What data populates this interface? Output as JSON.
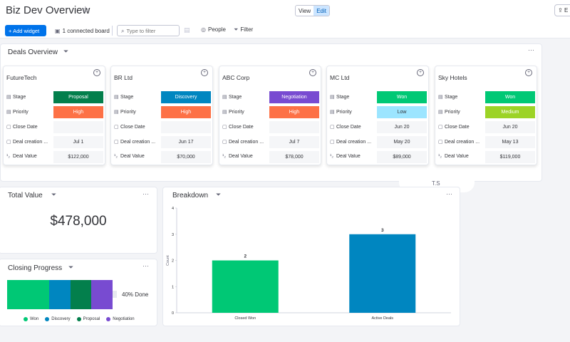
{
  "header": {
    "title": "Biz Dev Overview",
    "view_label": "View",
    "edit_label": "Edit",
    "export_label": "E"
  },
  "toolbar": {
    "add_widget": "Add widget",
    "connected_board": "1 connected board",
    "search_placeholder": "Type to filter",
    "people": "People",
    "filter": "Filter"
  },
  "deals_overview": {
    "title": "Deals Overview",
    "row_labels": [
      "Stage",
      "Priority",
      "Close Date",
      "Deal creation ...",
      "Deal Value"
    ],
    "cards": [
      {
        "name": "FutureTech",
        "stage": "Proposal",
        "stage_color": "#037f4c",
        "priority": "High",
        "priority_color": "#fd7146",
        "close_date": "",
        "created": "Jul 1",
        "value": "$122,000"
      },
      {
        "name": "BR Ltd",
        "stage": "Discovery",
        "stage_color": "#0086c0",
        "priority": "High",
        "priority_color": "#fd7146",
        "close_date": "",
        "created": "Jun 17",
        "value": "$70,000"
      },
      {
        "name": "ABC Corp",
        "stage": "Negotiation",
        "stage_color": "#784bd1",
        "priority": "High",
        "priority_color": "#fd7146",
        "close_date": "",
        "created": "Jul 7",
        "value": "$78,000"
      },
      {
        "name": "MC Ltd",
        "stage": "Won",
        "stage_color": "#00c875",
        "priority": "Low",
        "priority_color": "#9ce5ff",
        "close_date": "Jun 20",
        "created": "May 20",
        "value": "$89,000"
      },
      {
        "name": "Sky Hotels",
        "stage": "Won",
        "stage_color": "#00c875",
        "priority": "Medium",
        "priority_color": "#9cd326",
        "close_date": "Jun 20",
        "created": "May 13",
        "value": "$119,000"
      }
    ]
  },
  "total_value": {
    "title": "Total Value",
    "value": "$478,000"
  },
  "closing_progress": {
    "title": "Closing Progress",
    "percent_label": "40% Done",
    "segments": [
      {
        "name": "Won",
        "color": "#00c875",
        "fraction": 0.4
      },
      {
        "name": "Discovery",
        "color": "#0086c0",
        "fraction": 0.2
      },
      {
        "name": "Proposal",
        "color": "#037f4c",
        "fraction": 0.2
      },
      {
        "name": "Negotiation",
        "color": "#784bd1",
        "fraction": 0.2
      }
    ]
  },
  "breakdown": {
    "title": "Breakdown"
  },
  "chart_data": {
    "type": "bar",
    "categories": [
      "Closed Won",
      "Active Deals"
    ],
    "values": [
      2,
      3
    ],
    "colors": [
      "#00c875",
      "#0086c0"
    ],
    "ylabel": "Count",
    "ylim": [
      0,
      4
    ],
    "yticks": [
      0,
      1,
      2,
      3,
      4
    ],
    "data_labels": [
      "2",
      "3"
    ],
    "grid": false
  },
  "overlay": {
    "initials": "T.S"
  }
}
